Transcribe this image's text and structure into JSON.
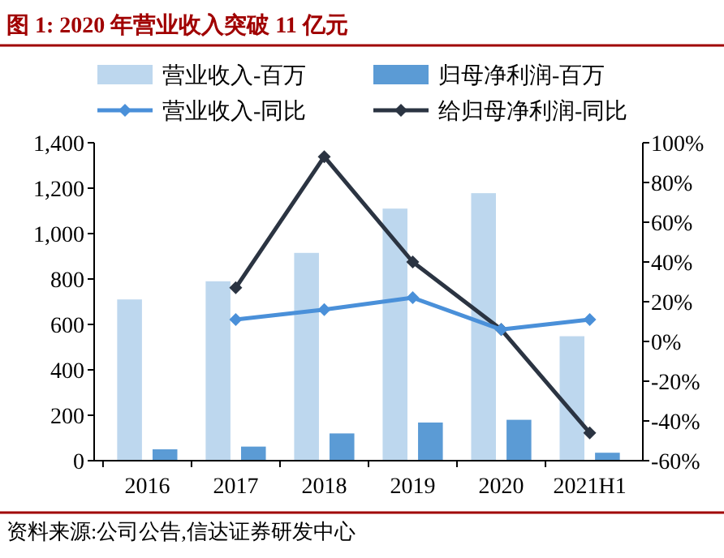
{
  "chart_data": {
    "type": "bar",
    "title": "图 1: 2020 年营业收入突破 11 亿元",
    "annotations": [
      "资料来源:公司公告,信达证券研发中心"
    ],
    "categories": [
      "2016",
      "2017",
      "2018",
      "2019",
      "2020",
      "2021H1"
    ],
    "series": [
      {
        "name": "营业收入-百万",
        "color": "#bdd7ee",
        "values": [
          710,
          790,
          915,
          1110,
          1178,
          548
        ]
      },
      {
        "name": "归母净利润-百万",
        "color": "#5b9bd5",
        "values": [
          50,
          62,
          120,
          168,
          180,
          35
        ]
      },
      {
        "name": "营业收入-同比",
        "type": "line",
        "axis": "y2",
        "color": "#4a90d9",
        "values": [
          null,
          11,
          16,
          22,
          6,
          11
        ]
      },
      {
        "name": "给归母净利润-同比",
        "type": "line",
        "axis": "y2",
        "color": "#2b3442",
        "values": [
          null,
          27,
          93,
          40,
          6,
          -46
        ]
      }
    ],
    "ylim": [
      0,
      1400
    ],
    "yticks": [
      {
        "value": 0,
        "label": "0"
      },
      {
        "value": 200,
        "label": "200"
      },
      {
        "value": 400,
        "label": "400"
      },
      {
        "value": 600,
        "label": "600"
      },
      {
        "value": 800,
        "label": "800"
      },
      {
        "value": 1000,
        "label": "1,000"
      },
      {
        "value": 1200,
        "label": "1,200"
      },
      {
        "value": 1400,
        "label": "1,400"
      }
    ],
    "y2lim": [
      -60,
      100
    ],
    "y2ticks": [
      {
        "value": -60,
        "label": "-60%"
      },
      {
        "value": -40,
        "label": "-40%"
      },
      {
        "value": -20,
        "label": "-20%"
      },
      {
        "value": 0,
        "label": "0%"
      },
      {
        "value": 20,
        "label": "20%"
      },
      {
        "value": 40,
        "label": "40%"
      },
      {
        "value": 60,
        "label": "60%"
      },
      {
        "value": 80,
        "label": "80%"
      },
      {
        "value": 100,
        "label": "100%"
      }
    ],
    "legend": "top",
    "marker": "diamond",
    "grid": false
  }
}
